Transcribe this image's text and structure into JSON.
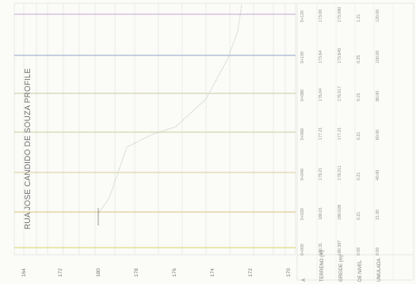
{
  "title": "RUA JOSE CANDIDO DE SOUZA PROFILE",
  "colors": {
    "background": "#fbfbf8",
    "gridline": "#cfd6d0",
    "profile_line": "#b9c6be",
    "station_lines": [
      "#d9d36a",
      "#d9c07a",
      "#d7d19a",
      "#c9cf9a",
      "#c8c8a6",
      "#8ea3c9",
      "#c7a7d2"
    ]
  },
  "elevation_labels": [
    "164",
    "172",
    "180",
    "178",
    "176",
    "174",
    "172",
    "170"
  ],
  "table": {
    "headers": [
      "A",
      "TERRENO (m)",
      "GREIDE (m)",
      "DE NIVEL",
      "UMULADA"
    ],
    "rows": [
      [
        "0+000",
        "180.31",
        "180.397",
        "0.00",
        "0.00"
      ],
      [
        "0+020",
        "180.01",
        "180.028",
        "0.21",
        "21.00"
      ],
      [
        "0+040",
        "179.21",
        "179.211",
        "0.21",
        "40.00"
      ],
      [
        "0+060",
        "177.21",
        "177.21",
        "0.21",
        "60.00"
      ],
      [
        "0+080",
        "176.04",
        "176.017",
        "0.15",
        "80.00"
      ],
      [
        "0+100",
        "173.64",
        "173.645",
        "0.25",
        "100.00"
      ],
      [
        "0+120",
        "173.00",
        "173.090",
        "1.21",
        "120.00"
      ]
    ]
  }
}
